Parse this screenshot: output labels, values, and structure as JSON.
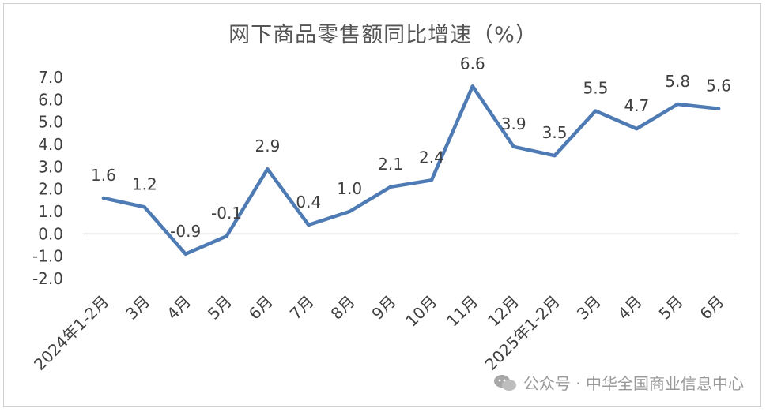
{
  "chart_data": {
    "type": "line",
    "title": "网下商品零售额同比增速（%）",
    "categories": [
      "2024年1-2月",
      "3月",
      "4月",
      "5月",
      "6月",
      "7月",
      "8月",
      "9月",
      "10月",
      "11月",
      "12月",
      "2025年1-2月",
      "3月",
      "4月",
      "5月",
      "6月"
    ],
    "series": [
      {
        "values": [
          1.6,
          1.2,
          -0.9,
          -0.1,
          2.9,
          0.4,
          1.0,
          2.1,
          2.4,
          6.6,
          3.9,
          3.5,
          5.5,
          4.7,
          5.8,
          5.6
        ]
      }
    ],
    "data_labels": [
      "1.6",
      "1.2",
      "-0.9",
      "-0.1",
      "2.9",
      "0.4",
      "1.0",
      "2.1",
      "2.4",
      "6.6",
      "3.9",
      "3.5",
      "5.5",
      "4.7",
      "5.8",
      "5.6"
    ],
    "yticks": [
      "7.0",
      "6.0",
      "5.0",
      "4.0",
      "3.0",
      "2.0",
      "1.0",
      "0.0",
      "-1.0",
      "-2.0"
    ],
    "ylim": [
      -2,
      7
    ],
    "grid": false,
    "line_color": "#4f7bb5"
  },
  "watermark": {
    "text": "公众号 · 中华全国商业信息中心",
    "icon": "wechat-icon"
  }
}
